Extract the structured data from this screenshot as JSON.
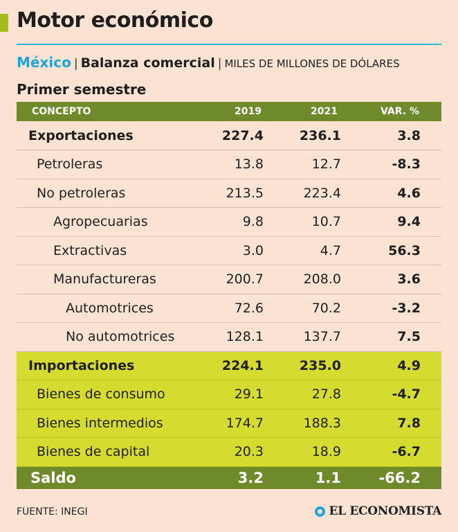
{
  "header": {
    "title": "Motor económico",
    "country": "México",
    "topic": "Balanza comercial",
    "units": "MILES DE MILLONES DE DÓLARES",
    "period": "Primer semestre",
    "accent_color": "#a7bc1c",
    "rule_color": "#2fb7e4"
  },
  "table": {
    "columns": [
      "CONCEPTO",
      "2019",
      "2021",
      "VAR. %"
    ],
    "rows": [
      {
        "concept": "Exportaciones",
        "v2019": "227.4",
        "v2021": "236.1",
        "var": "3.8"
      },
      {
        "concept": "Petroleras",
        "v2019": "13.8",
        "v2021": "12.7",
        "var": "-8.3"
      },
      {
        "concept": "No petroleras",
        "v2019": "213.5",
        "v2021": "223.4",
        "var": "4.6"
      },
      {
        "concept": "Agropecuarias",
        "v2019": "9.8",
        "v2021": "10.7",
        "var": "9.4"
      },
      {
        "concept": "Extractivas",
        "v2019": "3.0",
        "v2021": "4.7",
        "var": "56.3"
      },
      {
        "concept": "Manufactureras",
        "v2019": "200.7",
        "v2021": "208.0",
        "var": "3.6"
      },
      {
        "concept": "Automotrices",
        "v2019": "72.6",
        "v2021": "70.2",
        "var": "-3.2"
      },
      {
        "concept": "No automotrices",
        "v2019": "128.1",
        "v2021": "137.7",
        "var": "7.5"
      },
      {
        "concept": "Importaciones",
        "v2019": "224.1",
        "v2021": "235.0",
        "var": "4.9"
      },
      {
        "concept": "Bienes de consumo",
        "v2019": "29.1",
        "v2021": "27.8",
        "var": "-4.7"
      },
      {
        "concept": "Bienes intermedios",
        "v2019": "174.7",
        "v2021": "188.3",
        "var": "7.8"
      },
      {
        "concept": "Bienes de capital",
        "v2019": "20.3",
        "v2021": "18.9",
        "var": "-6.7"
      },
      {
        "concept": "Saldo",
        "v2019": "3.2",
        "v2021": "1.1",
        "var": "-66.2"
      }
    ]
  },
  "footer": {
    "source": "FUENTE: INEGI",
    "brand": "EL ECONOMISTA"
  }
}
